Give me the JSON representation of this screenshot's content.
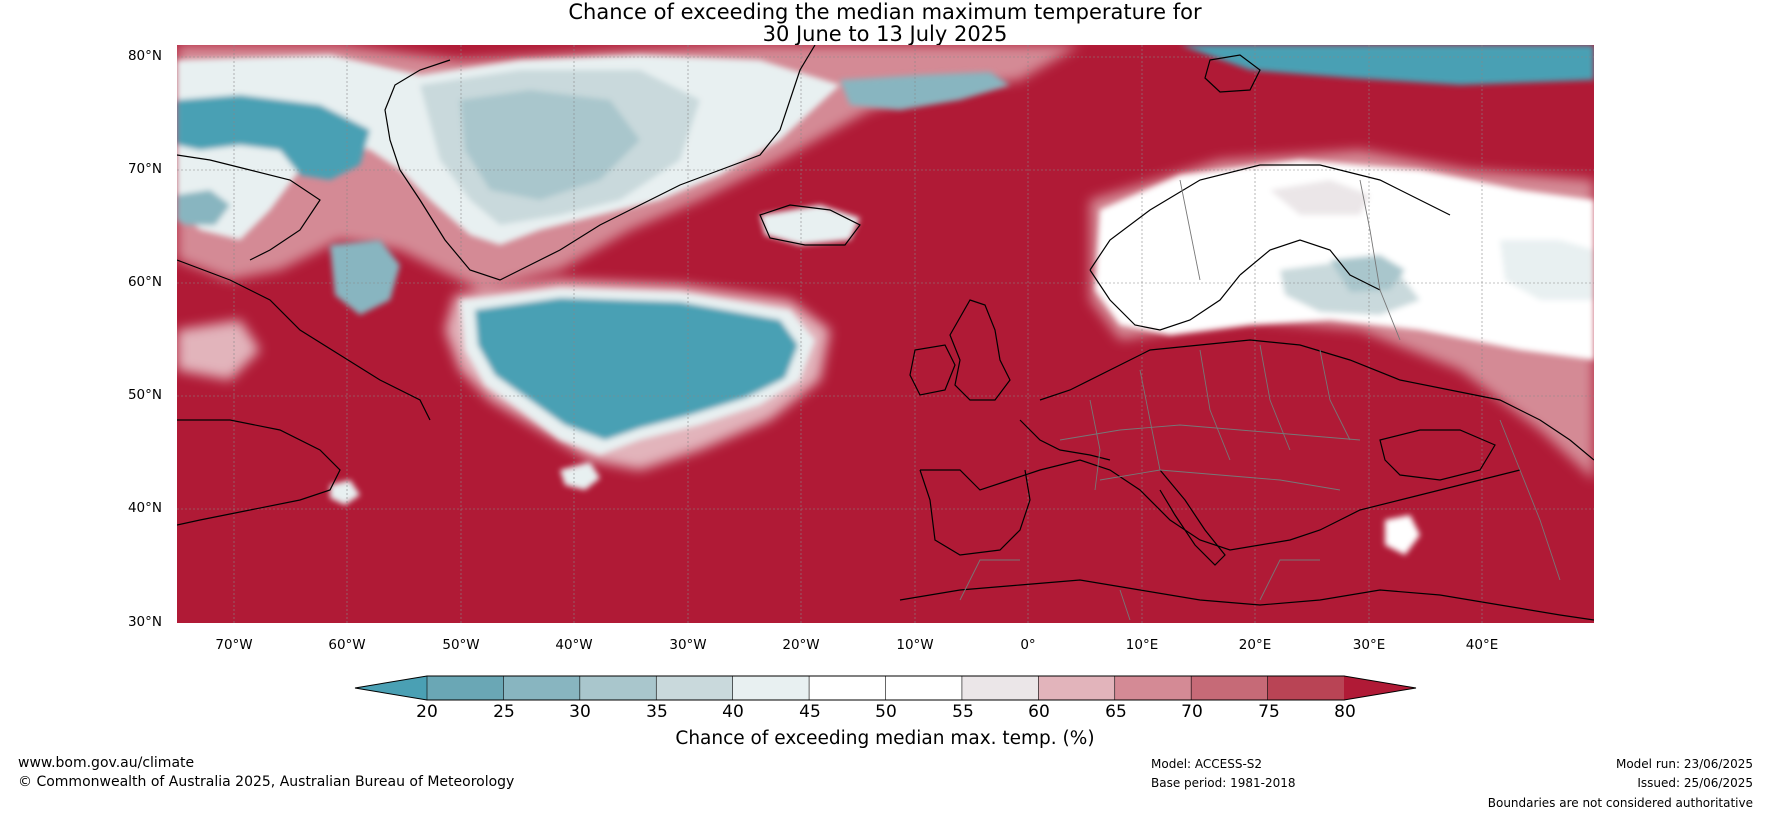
{
  "title": {
    "line1": "Chance of exceeding the median maximum temperature for",
    "line2": "30 June to 13 July 2025"
  },
  "axes": {
    "lat_labels": [
      "80°N",
      "70°N",
      "60°N",
      "50°N",
      "40°N",
      "30°N"
    ],
    "lon_labels": [
      "70°W",
      "60°W",
      "50°W",
      "40°W",
      "30°W",
      "20°W",
      "10°W",
      "0°",
      "10°E",
      "20°E",
      "30°E",
      "40°E"
    ],
    "lat_range": [
      30,
      81
    ],
    "lon_range": [
      -75,
      50
    ]
  },
  "colorbar": {
    "ticks": [
      "20",
      "25",
      "30",
      "35",
      "40",
      "45",
      "50",
      "55",
      "60",
      "65",
      "70",
      "75",
      "80"
    ],
    "colors": [
      "#4aa0b4",
      "#6aa7b5",
      "#88b5c0",
      "#a9c6cc",
      "#c9d9dc",
      "#e8f0f1",
      "#ffffff",
      "#ffffff",
      "#ebe6e8",
      "#e2b4bb",
      "#d48a95",
      "#c66a77",
      "#b94455",
      "#b01a36"
    ],
    "label": "Chance of exceeding median max. temp. (%)"
  },
  "colors": {
    "land_ocean_hot": "#b01a36",
    "cool": "#4aa0b4",
    "pale_blue": "#a9c6cc",
    "very_pale": "#e8f0f1",
    "pink": "#d48a95"
  },
  "footer": {
    "website": "www.bom.gov.au/climate",
    "copyright": "© Commonwealth of Australia 2025, Australian Bureau of Meteorology",
    "model": "Model: ACCESS-S2",
    "base_period": "Base period: 1981-2018",
    "model_run": "Model run: 23/06/2025",
    "issued": "Issued: 25/06/2025",
    "disclaimer": "Boundaries are not considered authoritative"
  }
}
